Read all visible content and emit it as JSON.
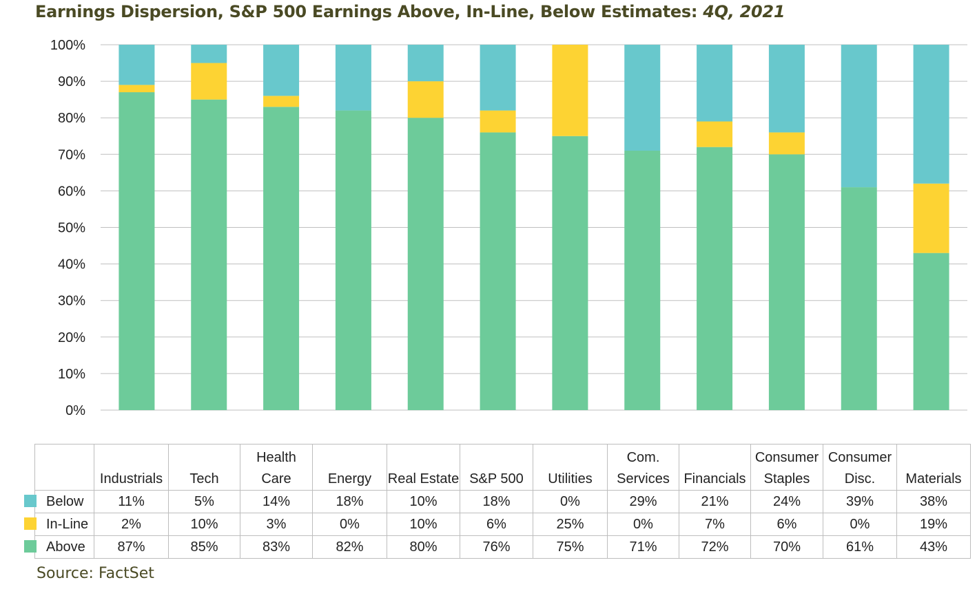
{
  "title": {
    "main": "Earnings Dispersion, S&P 500 Earnings Above, In-Line, Below Estimates:",
    "period": "4Q, 2021"
  },
  "source": "Source: FactSet",
  "colors": {
    "Below": "#68c8cc",
    "In-Line": "#fdd333",
    "Above": "#6dcb9a",
    "grid": "#bfbfbf"
  },
  "chart_data": {
    "type": "bar",
    "stacked": true,
    "title": "Earnings Dispersion, S&P 500 Earnings Above, In-Line, Below Estimates: 4Q, 2021",
    "categories": [
      "Industrials",
      "Tech",
      "Health Care",
      "Energy",
      "Real Estate",
      "S&P 500",
      "Utilities",
      "Com. Services",
      "Financials",
      "Consumer Staples",
      "Consumer Disc.",
      "Materials"
    ],
    "header_lines": [
      [
        "Industrials"
      ],
      [
        "Tech"
      ],
      [
        "Health",
        "Care"
      ],
      [
        "Energy"
      ],
      [
        "Real Estate"
      ],
      [
        "S&P 500"
      ],
      [
        "Utilities"
      ],
      [
        "Com.",
        "Services"
      ],
      [
        "Financials"
      ],
      [
        "Consumer",
        "Staples"
      ],
      [
        "Consumer",
        "Disc."
      ],
      [
        "Materials"
      ]
    ],
    "series": [
      {
        "name": "Above",
        "values": [
          87,
          85,
          83,
          82,
          80,
          76,
          75,
          71,
          72,
          70,
          61,
          43
        ]
      },
      {
        "name": "In-Line",
        "values": [
          2,
          10,
          3,
          0,
          10,
          6,
          25,
          0,
          7,
          6,
          0,
          19
        ]
      },
      {
        "name": "Below",
        "values": [
          11,
          5,
          14,
          18,
          10,
          18,
          0,
          29,
          21,
          24,
          39,
          38
        ]
      }
    ],
    "table_rows": [
      "Below",
      "In-Line",
      "Above"
    ],
    "ylim": [
      0,
      100
    ],
    "yticks": [
      "0%",
      "10%",
      "20%",
      "30%",
      "40%",
      "50%",
      "60%",
      "70%",
      "80%",
      "90%",
      "100%"
    ],
    "xlabel": "",
    "ylabel": "",
    "legend": "table-left",
    "grid": true
  }
}
